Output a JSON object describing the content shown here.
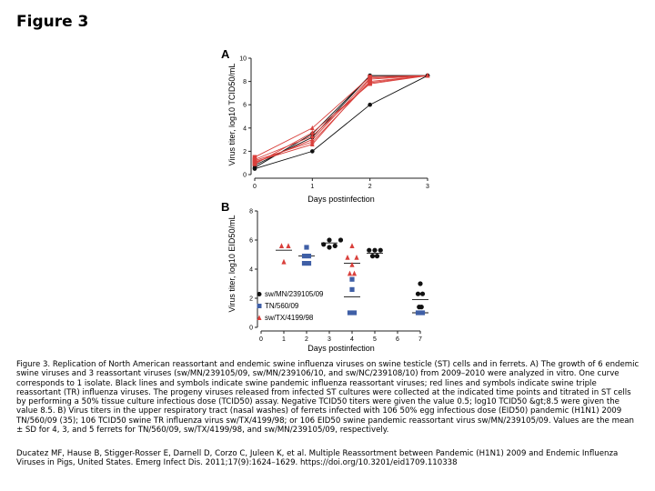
{
  "figure_title": "Figure 3",
  "caption": "Figure 3. Replication of North American reassortant and endemic swine influenza viruses on swine testicle (ST) cells and in ferrets. A) The growth of 6 endemic swine viruses and 3 reassortant viruses (sw/MN/239105/09, sw/MN/239106/10, and sw/NC/239108/10) from 2009–2010 were analyzed in vitro. One curve corresponds to 1 isolate. Black lines and symbols indicate swine pandemic influenza reassortant viruses; red lines and symbols indicate swine triple reassortant (TR) influenza viruses. The progeny viruses released from infected ST cultures were collected at the indicated time points and titrated in ST cells by performing a 50% tissue culture infectious dose (TCID50) assay. Negative TCID50 titers were given the value 0.5; log10 TCID50 &gt;8.5 were given the value 8.5. B) Virus titers in the upper respiratory tract (nasal washes) of ferrets infected with 106 50% egg infectious dose (EID50) pandemic (H1N1) 2009 TN/560/09 (35); 106 TCID50 swine TR influenza virus sw/TX/4199/98; or 106 EID50 swine pandemic reassortant virus sw/MN/239105/09. Values are the mean ± SD for 4, 3, and 5 ferrets for TN/560/09, sw/TX/4199/98, and sw/MN/239105/09, respectively.",
  "citation": "Ducatez MF, Hause B, Stigger-Rosser E, Darnell D, Corzo C, Juleen K, et al. Multiple Reassortment between Pandemic (H1N1) 2009 and Endemic Influenza Viruses in Pigs, United States. Emerg Infect Dis. 2011;17(9):1624–1629. https://doi.org/10.3201/eid1709.110338",
  "colors": {
    "black": "#111111",
    "red": "#d9403c",
    "blue": "#3f5fa6",
    "axis": "#222222"
  },
  "chart_data": [
    {
      "type": "line",
      "panel_label": "A",
      "xlabel": "Days postinfection",
      "ylabel": "Virus titer, log10 TCID50/mL",
      "xlim": [
        0,
        3
      ],
      "ylim": [
        0,
        10
      ],
      "x_ticks": [
        0,
        1,
        2,
        3
      ],
      "y_ticks": [
        0,
        2,
        4,
        6,
        8,
        10
      ],
      "x": [
        0,
        1,
        2,
        3
      ],
      "series": [
        {
          "color": "black",
          "values": [
            0.5,
            2.0,
            6.0,
            8.5
          ]
        },
        {
          "color": "black",
          "values": [
            0.8,
            3.2,
            8.5,
            8.5
          ]
        },
        {
          "color": "black",
          "values": [
            0.6,
            3.5,
            8.5,
            8.5
          ]
        },
        {
          "color": "red",
          "values": [
            1.0,
            3.0,
            8.3,
            8.5
          ]
        },
        {
          "color": "red",
          "values": [
            1.2,
            2.8,
            8.0,
            8.5
          ]
        },
        {
          "color": "red",
          "values": [
            0.9,
            3.6,
            7.8,
            8.5
          ]
        },
        {
          "color": "red",
          "values": [
            1.5,
            4.0,
            8.4,
            8.5
          ]
        },
        {
          "color": "red",
          "values": [
            1.3,
            3.3,
            7.9,
            8.5
          ]
        },
        {
          "color": "red",
          "values": [
            1.1,
            2.6,
            8.2,
            8.5
          ]
        }
      ]
    },
    {
      "type": "scatter",
      "panel_label": "B",
      "xlabel": "Days postinfection",
      "ylabel": "Virus titer, log10 EID50/mL",
      "xlim": [
        0,
        7
      ],
      "ylim": [
        0,
        8
      ],
      "x_ticks": [
        0,
        1,
        2,
        3,
        4,
        5,
        6,
        7
      ],
      "y_ticks": [
        0,
        2,
        4,
        6,
        8
      ],
      "legend_position": "bottom-left",
      "series": [
        {
          "name": "sw/MN/239105/09",
          "color": "black",
          "marker": "circle",
          "points": [
            [
              3.0,
              6.0
            ],
            [
              3.5,
              6.0
            ],
            [
              2.75,
              5.7
            ],
            [
              3.25,
              5.6
            ],
            [
              3.0,
              5.5
            ],
            [
              4.75,
              5.3
            ],
            [
              5.25,
              5.3
            ],
            [
              5.0,
              5.3
            ],
            [
              4.9,
              4.9
            ],
            [
              5.1,
              4.9
            ],
            [
              7.0,
              3.0
            ],
            [
              6.9,
              2.3
            ],
            [
              7.1,
              2.3
            ],
            [
              6.95,
              1.4
            ],
            [
              7.05,
              1.4
            ]
          ],
          "means": [
            [
              3.0,
              5.8
            ],
            [
              5.0,
              5.1
            ],
            [
              7.0,
              1.9
            ]
          ]
        },
        {
          "name": "TN/560/09",
          "color": "blue",
          "marker": "square",
          "points": [
            [
              2.0,
              5.5
            ],
            [
              1.9,
              4.9
            ],
            [
              2.1,
              4.9
            ],
            [
              1.9,
              4.4
            ],
            [
              2.1,
              4.4
            ],
            [
              4.0,
              3.3
            ],
            [
              4.0,
              2.6
            ],
            [
              3.9,
              1.0
            ],
            [
              4.1,
              1.0
            ],
            [
              6.9,
              1.0
            ],
            [
              7.1,
              1.0
            ]
          ],
          "means": [
            [
              2.0,
              4.9
            ],
            [
              4.0,
              2.1
            ],
            [
              7.0,
              1.0
            ]
          ]
        },
        {
          "name": "sw/TX/4199/98",
          "color": "red",
          "marker": "triangle",
          "points": [
            [
              0.9,
              5.6
            ],
            [
              1.2,
              5.6
            ],
            [
              1.0,
              4.5
            ],
            [
              4.0,
              5.6
            ],
            [
              3.8,
              4.8
            ],
            [
              4.2,
              4.8
            ],
            [
              4.0,
              4.3
            ],
            [
              3.9,
              3.7
            ],
            [
              4.1,
              3.7
            ]
          ],
          "means": [
            [
              1.0,
              5.3
            ],
            [
              4.0,
              4.4
            ]
          ]
        }
      ]
    }
  ]
}
